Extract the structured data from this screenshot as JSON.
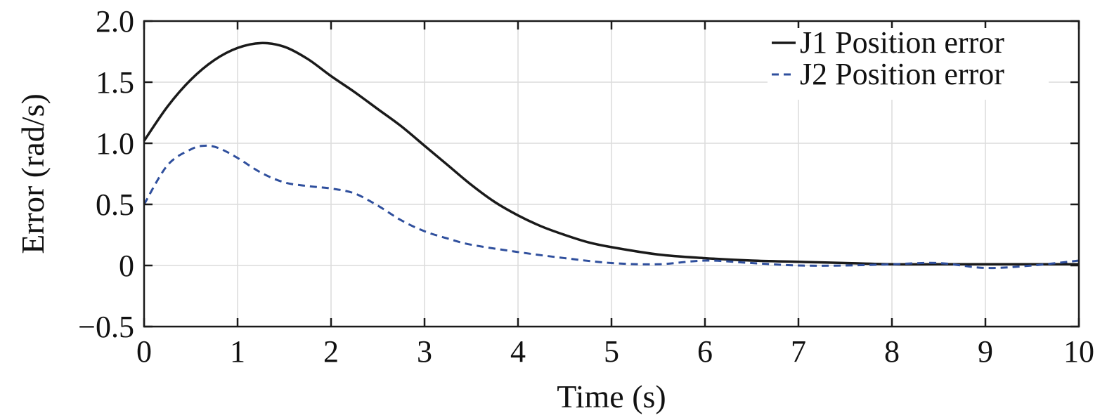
{
  "chart_data": {
    "type": "line",
    "title": "",
    "xlabel": "Time (s)",
    "ylabel": "Error (rad/s)",
    "xlim": [
      0,
      10
    ],
    "ylim": [
      -0.5,
      2.0
    ],
    "xticks": [
      0,
      1,
      2,
      3,
      4,
      5,
      6,
      7,
      8,
      9,
      10
    ],
    "xtick_labels": [
      "0",
      "1",
      "2",
      "3",
      "4",
      "5",
      "6",
      "7",
      "8",
      "9",
      "10"
    ],
    "yticks": [
      -0.5,
      0,
      0.5,
      1.0,
      1.5,
      2.0
    ],
    "ytick_labels": [
      "−0.5",
      "0",
      "0.5",
      "1.0",
      "1.5",
      "2.0"
    ],
    "grid": true,
    "legend_position": "top-right",
    "series": [
      {
        "name": "J1 Position error",
        "color": "#1a1a1a",
        "dash": "solid",
        "x": [
          0,
          0.25,
          0.5,
          0.75,
          1.0,
          1.25,
          1.5,
          1.75,
          2.0,
          2.25,
          2.5,
          2.75,
          3.0,
          3.25,
          3.5,
          3.75,
          4.0,
          4.25,
          4.5,
          4.75,
          5.0,
          5.5,
          6.0,
          6.5,
          7.0,
          7.5,
          8.0,
          8.5,
          9.0,
          9.5,
          10.0
        ],
        "y": [
          1.02,
          1.3,
          1.52,
          1.68,
          1.78,
          1.82,
          1.79,
          1.69,
          1.55,
          1.42,
          1.28,
          1.14,
          0.98,
          0.82,
          0.66,
          0.52,
          0.41,
          0.32,
          0.25,
          0.19,
          0.15,
          0.09,
          0.06,
          0.04,
          0.03,
          0.02,
          0.01,
          0.01,
          0.01,
          0.01,
          0.01
        ]
      },
      {
        "name": "J2 Position error",
        "color": "#2f4f9d",
        "dash": "dashed",
        "x": [
          0,
          0.25,
          0.5,
          0.65,
          0.8,
          1.0,
          1.25,
          1.5,
          1.75,
          2.0,
          2.25,
          2.5,
          2.75,
          3.0,
          3.25,
          3.5,
          4.0,
          4.5,
          5.0,
          5.5,
          6.0,
          6.5,
          7.0,
          7.5,
          8.0,
          8.5,
          9.0,
          9.5,
          10.0
        ],
        "y": [
          0.5,
          0.82,
          0.95,
          0.98,
          0.96,
          0.88,
          0.76,
          0.68,
          0.65,
          0.63,
          0.59,
          0.49,
          0.37,
          0.28,
          0.22,
          0.17,
          0.11,
          0.06,
          0.02,
          0.01,
          0.04,
          0.02,
          0.0,
          0.0,
          0.01,
          0.02,
          -0.02,
          0.0,
          0.04
        ]
      }
    ]
  }
}
